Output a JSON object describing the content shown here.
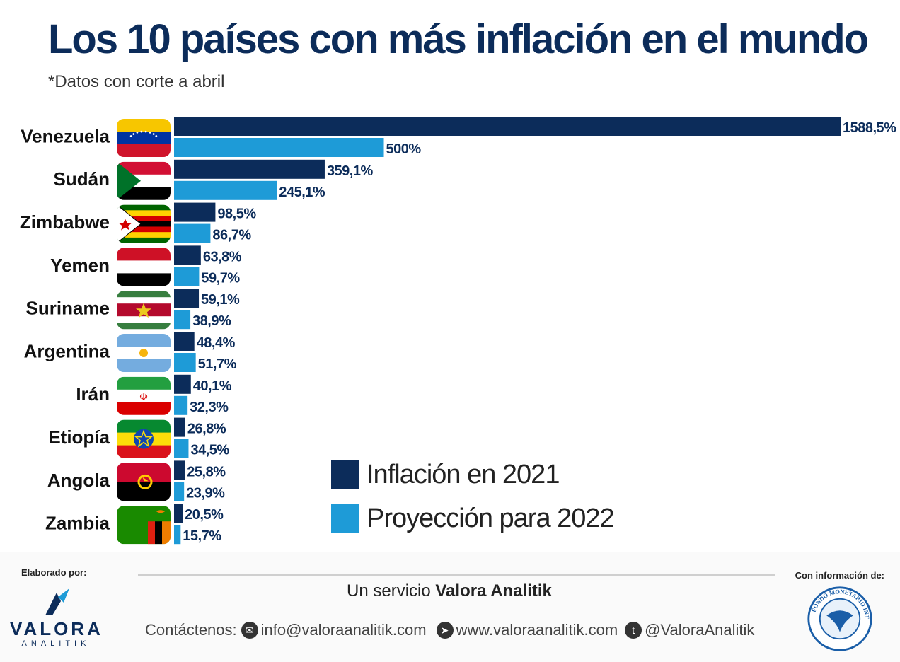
{
  "title": "Los 10 países con más inflación en el mundo",
  "subtitle": "*Datos con corte a abril",
  "colors": {
    "inflation_2021": "#0c2c5a",
    "projection_2022": "#1e9bd7"
  },
  "chart_data": {
    "type": "bar",
    "orientation": "horizontal",
    "categories": [
      "Venezuela",
      "Sudán",
      "Zimbabwe",
      "Yemen",
      "Suriname",
      "Argentina",
      "Irán",
      "Etiopía",
      "Angola",
      "Zambia"
    ],
    "series": [
      {
        "name": "Inflación en 2021",
        "values": [
          1588.5,
          359.1,
          98.5,
          63.8,
          59.1,
          48.4,
          40.1,
          26.8,
          25.8,
          20.5
        ],
        "labels": [
          "1588,5%",
          "359,1%",
          "98,5%",
          "63,8%",
          "59,1%",
          "48,4%",
          "40,1%",
          "26,8%",
          "25,8%",
          "20,5%"
        ]
      },
      {
        "name": "Proyección para 2022",
        "values": [
          500,
          245.1,
          86.7,
          59.7,
          38.9,
          51.7,
          32.3,
          34.5,
          23.9,
          15.7
        ],
        "labels": [
          "500%",
          "245,1%",
          "86,7%",
          "59,7%",
          "38,9%",
          "51,7%",
          "32,3%",
          "34,5%",
          "23,9%",
          "15,7%"
        ]
      }
    ],
    "legend_position": "bottom-center",
    "grid": false
  },
  "legend": [
    "Inflación en 2021",
    "Proyección para 2022"
  ],
  "footer": {
    "elaborado_por": "Elaborado por:",
    "logo_main": "VALORA",
    "logo_sub": "ANALITIK",
    "service_prefix": "Un servicio",
    "service_brand": "Valora Analitik",
    "contact_label": "Contáctenos:",
    "email": "info@valoraanalitik.com",
    "website": "www.valoraanalitik.com",
    "twitter": "@ValoraAnalitik",
    "con_informacion": "Con información de:",
    "imf_text": "FONDO MONETARIO INTERNACIONAL"
  }
}
